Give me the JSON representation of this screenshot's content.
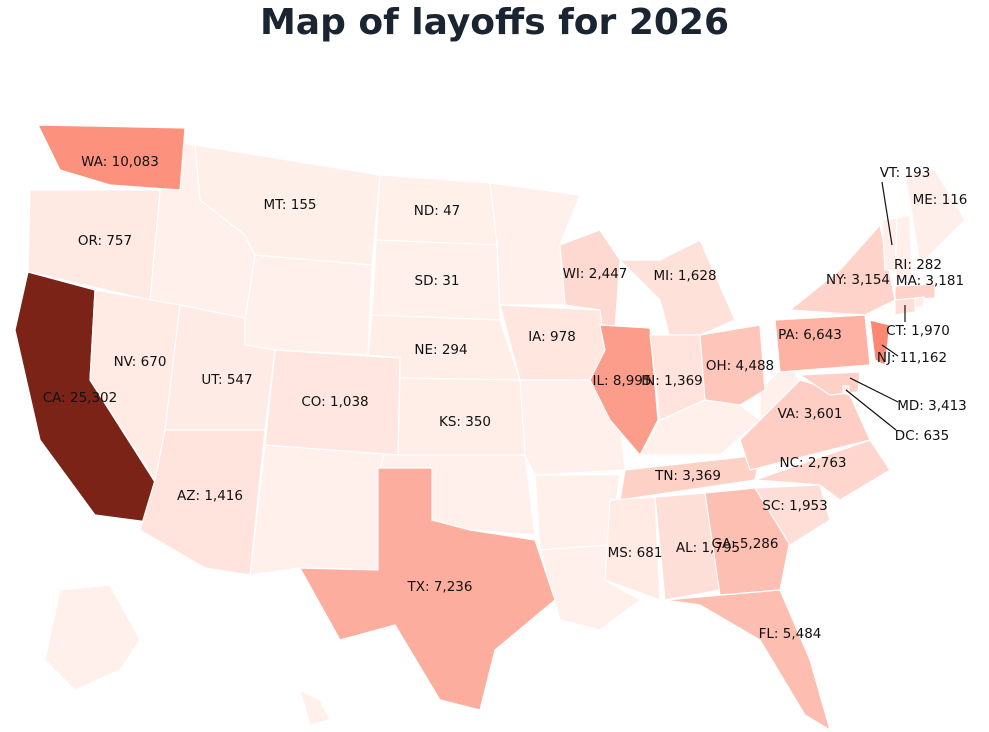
{
  "title": "Map of layoffs for 2026",
  "colorscale": [
    "#fff0eb",
    "#fb7a62",
    "#7a2316"
  ],
  "states": [
    {
      "label": "WA: 10,083",
      "value": 10083
    },
    {
      "label": "OR: 757",
      "value": 757
    },
    {
      "label": "CA: 25,302",
      "value": 25302
    },
    {
      "label": "NV: 670",
      "value": 670
    },
    {
      "label": "MT: 155",
      "value": 155
    },
    {
      "label": "UT: 547",
      "value": 547
    },
    {
      "label": "AZ: 1,416",
      "value": 1416
    },
    {
      "label": "CO: 1,038",
      "value": 1038
    },
    {
      "label": "ND: 47",
      "value": 47
    },
    {
      "label": "SD: 31",
      "value": 31
    },
    {
      "label": "NE: 294",
      "value": 294
    },
    {
      "label": "KS: 350",
      "value": 350
    },
    {
      "label": "TX: 7,236",
      "value": 7236
    },
    {
      "label": "WI: 2,447",
      "value": 2447
    },
    {
      "label": "MI: 1,628",
      "value": 1628
    },
    {
      "label": "IA: 978",
      "value": 978
    },
    {
      "label": "IL: 8,995",
      "value": 8995
    },
    {
      "label": "IN: 1,369",
      "value": 1369
    },
    {
      "label": "OH: 4,488",
      "value": 4488
    },
    {
      "label": "TN: 3,369",
      "value": 3369
    },
    {
      "label": "MS: 681",
      "value": 681
    },
    {
      "label": "AL: 1,795",
      "value": 1795
    },
    {
      "label": "GA: 5,286",
      "value": 5286
    },
    {
      "label": "FL: 5,484",
      "value": 5484
    },
    {
      "label": "SC: 1,953",
      "value": 1953
    },
    {
      "label": "NC: 2,763",
      "value": 2763
    },
    {
      "label": "VA: 3,601",
      "value": 3601
    },
    {
      "label": "PA: 6,643",
      "value": 6643
    },
    {
      "label": "NY: 3,154",
      "value": 3154
    },
    {
      "label": "MA: 3,181",
      "value": 3181
    },
    {
      "label": "RI: 282",
      "value": 282
    },
    {
      "label": "CT: 1,970",
      "value": 1970
    },
    {
      "label": "NJ: 11,162",
      "value": 11162
    },
    {
      "label": "MD: 3,413",
      "value": 3413
    },
    {
      "label": "DC: 635",
      "value": 635
    },
    {
      "label": "VT: 193",
      "value": 193
    },
    {
      "label": "ME: 116",
      "value": 116
    }
  ]
}
